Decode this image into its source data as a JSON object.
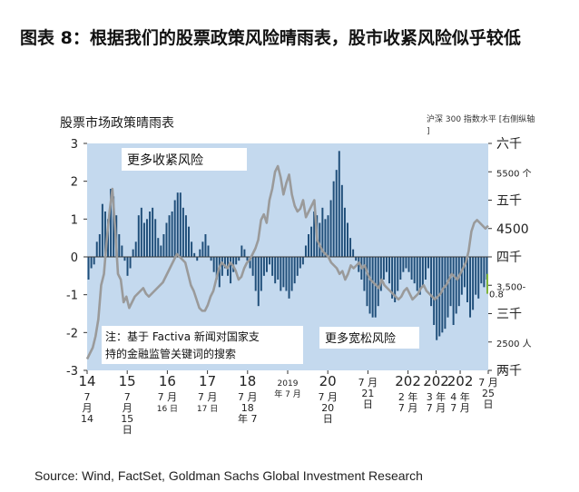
{
  "figure": {
    "title": "图表 8：根据我们的股票政策风险晴雨表，股市收紧风险似乎较低",
    "source": "Source: Wind, FactSet, Goldman Sachs Global Investment Research"
  },
  "chart_data": {
    "type": "bar",
    "title": "股票市场政策晴雨表",
    "left_axis": {
      "ylim": [
        -3,
        3
      ],
      "ticks": [
        "3",
        "2",
        "1",
        "0",
        "-1",
        "-2",
        "-3"
      ]
    },
    "right_axis": {
      "label": "沪深 300 指数水平 [右侧纵轴]",
      "ylim": [
        2000,
        6000
      ],
      "ticks": [
        {
          "value": 6000,
          "label": "六千"
        },
        {
          "value": 5500,
          "label": "5500 个"
        },
        {
          "value": 5000,
          "label": "五千"
        },
        {
          "value": 4500,
          "label": "4500"
        },
        {
          "value": 4000,
          "label": "四千"
        },
        {
          "value": 3500,
          "label": "3,500-"
        },
        {
          "value": 3000,
          "label": "三千"
        },
        {
          "value": 2500,
          "label": "2500 人"
        },
        {
          "value": 2000,
          "label": "两千"
        }
      ],
      "extra_label": "0.8"
    },
    "x_labels": [
      {
        "pos": 0.0,
        "lines": [
          "14",
          "7",
          "月",
          "14"
        ]
      },
      {
        "pos": 0.1,
        "lines": [
          "15",
          "7",
          "月",
          "15",
          "日"
        ]
      },
      {
        "pos": 0.2,
        "lines": [
          "16",
          "7 月",
          "16 日"
        ]
      },
      {
        "pos": 0.3,
        "lines": [
          "17",
          "7 月",
          "17 日"
        ]
      },
      {
        "pos": 0.4,
        "lines": [
          "18",
          "7 月",
          "18",
          "年 7"
        ]
      },
      {
        "pos": 0.5,
        "lines": [
          "2019",
          "年 7 月"
        ]
      },
      {
        "pos": 0.6,
        "lines": [
          "20",
          "7 月",
          "20",
          "日"
        ]
      },
      {
        "pos": 0.7,
        "lines": [
          "7 月",
          "21",
          "日"
        ]
      },
      {
        "pos": 0.8,
        "lines": [
          "202",
          "2 年",
          "7 月"
        ]
      },
      {
        "pos": 0.87,
        "lines": [
          "202",
          "3 年",
          "7 月"
        ]
      },
      {
        "pos": 0.93,
        "lines": [
          "202",
          "4 年",
          "7 月"
        ]
      },
      {
        "pos": 1.0,
        "lines": [
          "7 月",
          "25",
          "日"
        ]
      }
    ],
    "annotations": {
      "tightening": "更多收紧风险",
      "easing": "更多宽松风险",
      "note": "注：基于 Factiva 新闻对国家支持的金融监管关键词的搜索"
    },
    "bars": [
      -0.6,
      -0.3,
      -0.2,
      0.4,
      0.6,
      1.4,
      1.2,
      1.0,
      1.8,
      1.6,
      1.1,
      0.6,
      0.3,
      -0.1,
      -0.5,
      -0.3,
      0.2,
      0.4,
      1.1,
      1.3,
      0.9,
      1.0,
      1.2,
      1.3,
      1.0,
      0.5,
      0.3,
      0.6,
      0.9,
      1.1,
      1.2,
      1.5,
      1.7,
      1.7,
      1.3,
      1.1,
      0.8,
      0.4,
      0.1,
      -0.1,
      0.2,
      0.4,
      0.6,
      0.3,
      -0.1,
      -0.4,
      -0.6,
      -0.8,
      -0.5,
      -0.3,
      -0.5,
      -0.7,
      -0.4,
      -0.2,
      -0.1,
      0.3,
      0.2,
      -0.1,
      -0.3,
      -0.5,
      -0.9,
      -1.3,
      -0.9,
      -0.5,
      -0.4,
      -0.2,
      -0.5,
      -0.7,
      -0.6,
      -0.9,
      -0.8,
      -0.9,
      -1.1,
      -0.9,
      -0.7,
      -0.5,
      -0.3,
      -0.2,
      0.3,
      0.6,
      0.8,
      1.2,
      1.1,
      0.9,
      1.3,
      1.0,
      1.1,
      1.5,
      2.0,
      2.3,
      2.8,
      1.9,
      1.3,
      0.9,
      0.5,
      0.2,
      -0.1,
      -0.4,
      -0.6,
      -0.9,
      -1.3,
      -1.5,
      -1.6,
      -1.6,
      -1.3,
      -0.9,
      -0.6,
      -0.4,
      -0.7,
      -1.1,
      -1.2,
      -0.9,
      -0.6,
      -0.4,
      -0.3,
      -0.4,
      -0.6,
      -0.7,
      -0.9,
      -1.0,
      -0.8,
      -0.6,
      -0.3,
      -1.3,
      -1.8,
      -2.2,
      -2.1,
      -2.0,
      -1.9,
      -1.6,
      -1.3,
      -1.8,
      -1.5,
      -1.3,
      -1.0,
      -0.8,
      -1.2,
      -1.6,
      -1.4,
      -1.0,
      -1.1,
      -0.7,
      -0.8,
      -0.6
    ],
    "csi300": [
      2200,
      2300,
      2400,
      2600,
      2900,
      3500,
      3700,
      4300,
      4800,
      5200,
      4500,
      3700,
      3600,
      3200,
      3300,
      3100,
      3200,
      3300,
      3350,
      3400,
      3450,
      3350,
      3300,
      3350,
      3400,
      3450,
      3500,
      3550,
      3650,
      3750,
      3850,
      3950,
      4050,
      4000,
      3950,
      3900,
      3700,
      3500,
      3400,
      3250,
      3100,
      3050,
      3050,
      3150,
      3300,
      3400,
      3600,
      3800,
      3900,
      3850,
      3800,
      3900,
      3850,
      3750,
      3600,
      3650,
      3800,
      3900,
      3950,
      4050,
      4150,
      4300,
      4650,
      4750,
      4600,
      5000,
      5200,
      5500,
      5600,
      5400,
      5100,
      5300,
      5450,
      5100,
      4900,
      4800,
      4850,
      5000,
      4700,
      4800,
      4900,
      5000,
      4300,
      4200,
      4100,
      4050,
      4000,
      3900,
      3850,
      3800,
      3700,
      3750,
      3600,
      3700,
      3850,
      3800,
      3850,
      3900,
      3800,
      3850,
      3700,
      3600,
      3550,
      3500,
      3450,
      3600,
      3500,
      3450,
      3400,
      3350,
      3300,
      3250,
      3300,
      3400,
      3450,
      3350,
      3250,
      3300,
      3350,
      3450,
      3500,
      3400,
      3350,
      3300,
      3250,
      3300,
      3350,
      3450,
      3500,
      3600,
      3700,
      3650,
      3600,
      3700,
      3800,
      3900,
      4100,
      4450,
      4600,
      4650,
      4600,
      4550,
      4500,
      4550
    ],
    "colors": {
      "plot_bg": "#c4d9ee",
      "bar": "#1f4e79",
      "line": "#9a9a9a",
      "zero": "#3a3a3a",
      "accent": "#7fb33a"
    }
  }
}
